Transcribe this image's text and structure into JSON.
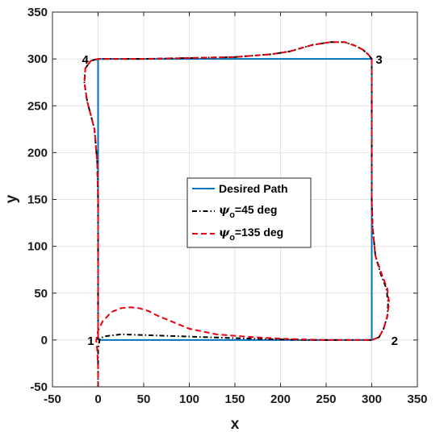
{
  "chart_data": {
    "type": "line",
    "xlabel": "x",
    "ylabel": "y",
    "xlim": [
      -50,
      350
    ],
    "ylim": [
      -50,
      350
    ],
    "xticks": [
      -50,
      0,
      50,
      100,
      150,
      200,
      250,
      300,
      350
    ],
    "yticks": [
      -50,
      0,
      50,
      100,
      150,
      200,
      250,
      300,
      350
    ],
    "grid": true,
    "legend_position": "center",
    "corner_labels": [
      {
        "text": "1",
        "x": -8,
        "y": 0
      },
      {
        "text": "2",
        "x": 325,
        "y": 0
      },
      {
        "text": "3",
        "x": 308,
        "y": 300
      },
      {
        "text": "4",
        "x": -14,
        "y": 300
      }
    ],
    "series": [
      {
        "name": "Desired Path",
        "color": "#0072BD",
        "style": "solid",
        "x": [
          0,
          300,
          300,
          0,
          0
        ],
        "y": [
          0,
          0,
          300,
          300,
          0
        ]
      },
      {
        "name_prefix": "ψ",
        "name_sub": "o",
        "name_suffix": "=45 deg",
        "color": "#000000",
        "style": "dashdot",
        "x": [
          0,
          0,
          0,
          2,
          8,
          25,
          60,
          120,
          180,
          230,
          270,
          290,
          300,
          308,
          313,
          317,
          318,
          316,
          310,
          304,
          301,
          300,
          300,
          300,
          300,
          300,
          300,
          296,
          290,
          282,
          270,
          255,
          235,
          210,
          190,
          150,
          100,
          50,
          10,
          0,
          -8,
          -14,
          -15,
          -12,
          -8,
          -4,
          -1,
          0,
          0,
          0,
          0,
          0,
          0
        ],
        "y": [
          -50,
          -30,
          -10,
          2,
          4,
          6,
          5,
          3,
          1,
          0,
          0,
          0,
          0,
          3,
          12,
          25,
          40,
          55,
          70,
          90,
          120,
          150,
          200,
          250,
          280,
          295,
          300,
          305,
          310,
          314,
          318,
          318,
          315,
          308,
          305,
          302,
          301,
          300,
          300,
          300,
          298,
          290,
          275,
          255,
          240,
          225,
          190,
          150,
          100,
          50,
          20,
          5,
          0
        ]
      },
      {
        "name_prefix": "ψ",
        "name_sub": "o",
        "name_suffix": "=135 deg",
        "color": "#E8000B",
        "style": "dashed",
        "x": [
          0,
          0,
          -1,
          -2,
          0,
          5,
          15,
          25,
          35,
          45,
          55,
          65,
          80,
          100,
          130,
          170,
          210,
          250,
          280,
          300,
          308,
          313,
          317,
          319,
          317,
          311,
          304,
          301,
          300,
          300,
          300,
          300,
          300,
          300,
          296,
          290,
          282,
          270,
          255,
          235,
          210,
          190,
          150,
          100,
          50,
          10,
          0,
          -8,
          -14,
          -15,
          -12,
          -8,
          -4,
          -1,
          0,
          0,
          0,
          0
        ],
        "y": [
          -50,
          -30,
          -10,
          0,
          10,
          20,
          30,
          34,
          35,
          34,
          31,
          26,
          20,
          12,
          6,
          3,
          1,
          0,
          0,
          0,
          3,
          12,
          25,
          40,
          55,
          70,
          90,
          120,
          150,
          200,
          250,
          280,
          295,
          300,
          305,
          310,
          314,
          318,
          318,
          315,
          308,
          305,
          302,
          301,
          300,
          300,
          300,
          298,
          290,
          275,
          255,
          240,
          225,
          190,
          150,
          100,
          50,
          0
        ]
      }
    ]
  }
}
